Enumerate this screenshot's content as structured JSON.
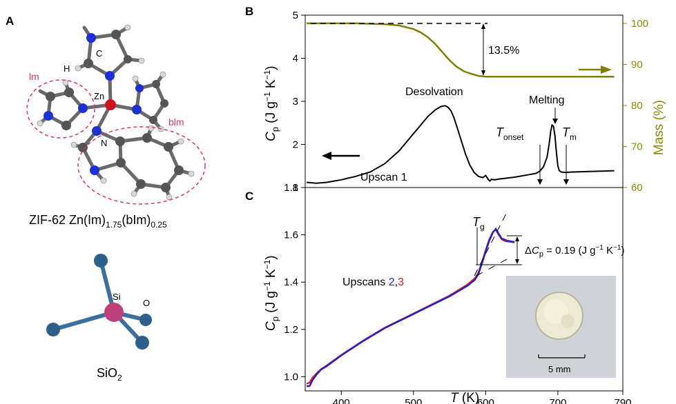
{
  "panels": {
    "a": {
      "letter": "A",
      "zif_labels": {
        "im": "lm",
        "bim": "blm",
        "zn": "Zn",
        "n": "N",
        "c": "C",
        "h": "H"
      },
      "zif_formula": {
        "base": "ZIF-62 Zn(Im)",
        "sub1": "1.75",
        "mid": "(bIm)",
        "sub2": "0.25"
      },
      "sio2_labels": {
        "si": "Si",
        "o": "O"
      },
      "sio2_formula": {
        "base": "SiO",
        "sub": "2"
      }
    },
    "b": {
      "letter": "B"
    },
    "c": {
      "letter": "C"
    }
  },
  "colors": {
    "mass_curve": "#7f7f00",
    "mass_axis": "#8a8a00",
    "upscan2": "#1f1fd6",
    "upscan3": "#e01c1c",
    "im_circle": "#e0306a",
    "n_atom": "#1f2fd6",
    "zn_atom": "#d01020",
    "c_atom": "#555555",
    "si_atom": "#c0407a",
    "o_atom": "#2c5f8a"
  },
  "chart_data": [
    {
      "type": "line",
      "panel": "B",
      "x_units": "K",
      "xlim": [
        350,
        790
      ],
      "ylim": [
        1,
        5
      ],
      "ylabel": "C_p (J g^-1 K^-1)",
      "ylabel_parts": {
        "c": "C",
        "p": "p",
        "units1": " (J g",
        "sup1": "−1",
        "units2": " K",
        "sup2": "−1",
        "units3": ")"
      },
      "y_ticks": [
        1,
        2,
        3,
        4,
        5
      ],
      "y2lim": [
        60,
        102
      ],
      "y2label": "Mass (%)",
      "y2_ticks": [
        60,
        70,
        80,
        90,
        100
      ],
      "series": [
        {
          "name": "Upscan 1",
          "axis": "left",
          "x": [
            352,
            365,
            380,
            400,
            420,
            440,
            460,
            480,
            495,
            510,
            520,
            530,
            538,
            544,
            548,
            552,
            556,
            560,
            566,
            572,
            578,
            584,
            590,
            596,
            600,
            604,
            606,
            608,
            612,
            620,
            640,
            660,
            670,
            675,
            680,
            685,
            688,
            690,
            692,
            694,
            696,
            698,
            700,
            702,
            705,
            710,
            720,
            740,
            760,
            778
          ],
          "y": [
            1.12,
            1.1,
            1.12,
            1.18,
            1.26,
            1.36,
            1.55,
            1.85,
            2.15,
            2.45,
            2.65,
            2.8,
            2.88,
            2.9,
            2.86,
            2.78,
            2.62,
            2.42,
            2.1,
            1.78,
            1.52,
            1.35,
            1.26,
            1.23,
            1.28,
            1.18,
            1.15,
            1.19,
            1.18,
            1.2,
            1.24,
            1.3,
            1.33,
            1.38,
            1.48,
            1.7,
            2.02,
            2.3,
            2.45,
            2.42,
            2.2,
            1.82,
            1.5,
            1.39,
            1.36,
            1.35,
            1.36,
            1.37,
            1.38,
            1.39
          ]
        },
        {
          "name": "Mass",
          "axis": "right",
          "x": [
            352,
            420,
            460,
            480,
            500,
            510,
            520,
            530,
            540,
            550,
            560,
            570,
            580,
            590,
            600,
            610,
            640,
            700,
            778
          ],
          "y": [
            100,
            100,
            99.8,
            99.5,
            98.6,
            97.8,
            96.6,
            95.0,
            93.0,
            91.0,
            89.4,
            88.3,
            87.7,
            87.2,
            87.0,
            87.0,
            87.0,
            87.0,
            87.0
          ]
        }
      ],
      "annotations": {
        "desolvation": "Desolvation",
        "melting": "Melting",
        "t_onset": {
          "t": "T",
          "sub": "onset"
        },
        "t_m": {
          "t": "T",
          "sub": "m"
        },
        "upscan1": "Upscan 1",
        "mass_loss": "13.5%"
      }
    },
    {
      "type": "line",
      "panel": "C",
      "xlabel": "T (K)",
      "xlabel_parts": {
        "t": "T",
        "units": " (K)"
      },
      "x_ticks": [
        400,
        500,
        600,
        700,
        790
      ],
      "xlim": [
        350,
        790
      ],
      "ylim": [
        0.94,
        1.8
      ],
      "ylabel": "C_p (J g^-1 K^-1)",
      "ylabel_parts": {
        "c": "C",
        "p": "p",
        "units1": " (J g",
        "sup1": "−1",
        "units2": " K",
        "sup2": "−1",
        "units3": ")"
      },
      "y_ticks": [
        1.0,
        1.2,
        1.4,
        1.6,
        1.8
      ],
      "series": [
        {
          "name": "2",
          "x": [
            352,
            356,
            360,
            366,
            372,
            380,
            400,
            430,
            460,
            490,
            520,
            550,
            575,
            585,
            590,
            595,
            600,
            605,
            610,
            614,
            618,
            622,
            626,
            630,
            640
          ],
          "y": [
            0.96,
            0.96,
            0.985,
            1.01,
            1.03,
            1.045,
            1.09,
            1.15,
            1.205,
            1.25,
            1.295,
            1.34,
            1.385,
            1.41,
            1.435,
            1.48,
            1.53,
            1.575,
            1.61,
            1.625,
            1.605,
            1.585,
            1.58,
            1.575,
            1.57
          ]
        },
        {
          "name": "3",
          "x": [
            352,
            356,
            360,
            366,
            372,
            380,
            400,
            430,
            460,
            490,
            520,
            550,
            575,
            585,
            590,
            595,
            600,
            605,
            610,
            614,
            618,
            622,
            626,
            630,
            640
          ],
          "y": [
            0.97,
            0.975,
            0.995,
            1.015,
            1.032,
            1.048,
            1.092,
            1.152,
            1.207,
            1.252,
            1.297,
            1.343,
            1.39,
            1.416,
            1.44,
            1.485,
            1.535,
            1.58,
            1.612,
            1.622,
            1.6,
            1.582,
            1.575,
            1.572,
            1.568
          ]
        }
      ],
      "annotations": {
        "t_g": {
          "t": "T",
          "sub": "g"
        },
        "delta_cp": {
          "delta": "Δ",
          "c": "C",
          "p": "p",
          "rest1": " = 0.19 (J g",
          "sup1": "−1",
          "rest2": " K",
          "sup2": "−1",
          "rest3": ")"
        },
        "upscans": {
          "prefix": "Upscans ",
          "n2": "2",
          "comma": ",",
          "n3": "3"
        },
        "scale_bar": "5 mm"
      }
    }
  ]
}
